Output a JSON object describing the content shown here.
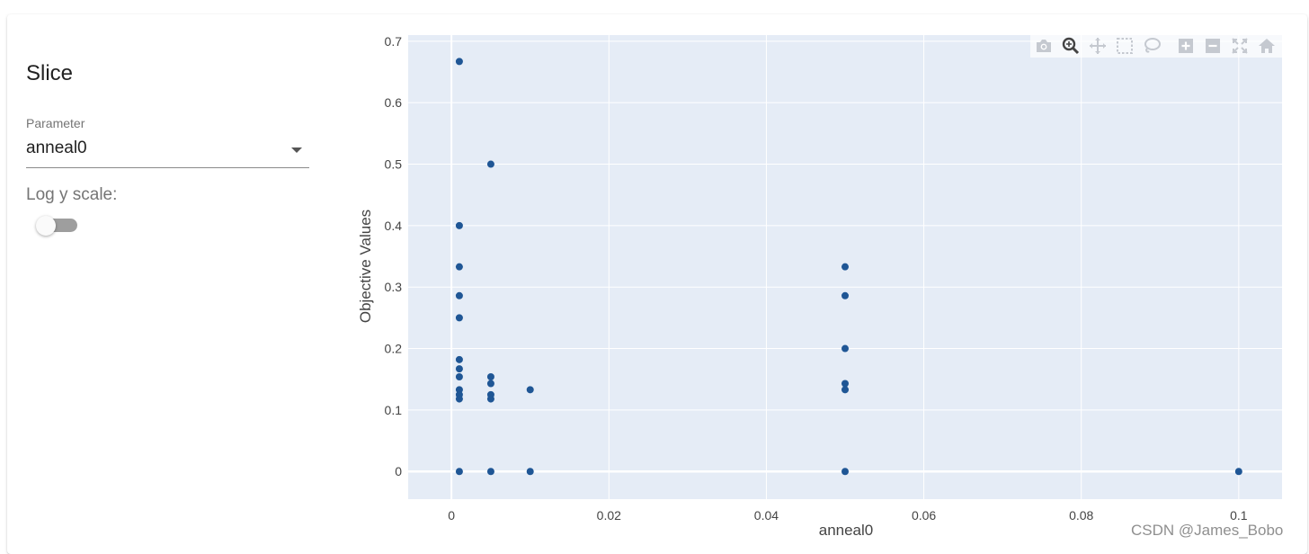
{
  "panel": {
    "title": "Slice",
    "parameter_label": "Parameter",
    "parameter_value": "anneal0",
    "log_label": "Log y scale:",
    "log_enabled": false
  },
  "modebar": {
    "icons": [
      "camera-icon",
      "zoom-icon",
      "pan-icon",
      "box-select-icon",
      "lasso-select-icon",
      "zoom-in-icon",
      "zoom-out-icon",
      "autoscale-icon",
      "reset-axes-icon"
    ],
    "active": "zoom-icon"
  },
  "colors": {
    "plot_bg": "#e5ecf6",
    "marker": "#1f5695",
    "grid": "#ffffff"
  },
  "watermark": "CSDN @James_Bobo",
  "chart_data": {
    "type": "scatter",
    "xlabel": "anneal0",
    "ylabel": "Objective Values",
    "xlim": [
      -0.0055,
      0.1055
    ],
    "ylim": [
      -0.045,
      0.71
    ],
    "xticks": [
      0,
      0.02,
      0.04,
      0.06,
      0.08,
      0.1
    ],
    "xtick_labels": [
      "0",
      "0.02",
      "0.04",
      "0.06",
      "0.08",
      "0.1"
    ],
    "yticks": [
      0,
      0.1,
      0.2,
      0.3,
      0.4,
      0.5,
      0.6,
      0.7
    ],
    "ytick_labels": [
      "0",
      "0.1",
      "0.2",
      "0.3",
      "0.4",
      "0.5",
      "0.6",
      "0.7"
    ],
    "grid": true,
    "points": [
      {
        "x": 0.001,
        "y": 0.667
      },
      {
        "x": 0.001,
        "y": 0.4
      },
      {
        "x": 0.001,
        "y": 0.333
      },
      {
        "x": 0.001,
        "y": 0.286
      },
      {
        "x": 0.001,
        "y": 0.25
      },
      {
        "x": 0.001,
        "y": 0.182
      },
      {
        "x": 0.001,
        "y": 0.167
      },
      {
        "x": 0.001,
        "y": 0.154
      },
      {
        "x": 0.001,
        "y": 0.133
      },
      {
        "x": 0.001,
        "y": 0.125
      },
      {
        "x": 0.001,
        "y": 0.118
      },
      {
        "x": 0.001,
        "y": 0
      },
      {
        "x": 0.005,
        "y": 0.5
      },
      {
        "x": 0.005,
        "y": 0.154
      },
      {
        "x": 0.005,
        "y": 0.143
      },
      {
        "x": 0.005,
        "y": 0.125
      },
      {
        "x": 0.005,
        "y": 0.118
      },
      {
        "x": 0.005,
        "y": 0
      },
      {
        "x": 0.01,
        "y": 0.133
      },
      {
        "x": 0.01,
        "y": 0
      },
      {
        "x": 0.05,
        "y": 0.333
      },
      {
        "x": 0.05,
        "y": 0.286
      },
      {
        "x": 0.05,
        "y": 0.2
      },
      {
        "x": 0.05,
        "y": 0.143
      },
      {
        "x": 0.05,
        "y": 0.133
      },
      {
        "x": 0.05,
        "y": 0
      },
      {
        "x": 0.1,
        "y": 0
      }
    ]
  }
}
